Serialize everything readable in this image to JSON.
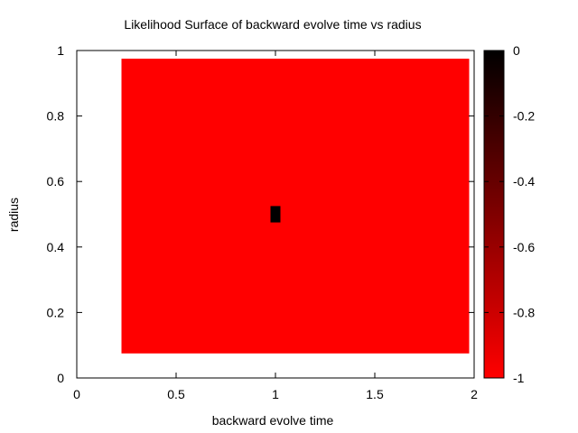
{
  "chart_data": {
    "type": "heatmap",
    "title": "Likelihood Surface of backward evolve time vs radius",
    "xlabel": "backward evolve time",
    "ylabel": "radius",
    "xlim": [
      0,
      2
    ],
    "ylim": [
      0,
      1
    ],
    "x_ticks": [
      {
        "value": 0,
        "label": "0"
      },
      {
        "value": 0.5,
        "label": "0.5"
      },
      {
        "value": 1,
        "label": "1"
      },
      {
        "value": 1.5,
        "label": "1.5"
      },
      {
        "value": 2,
        "label": "2"
      }
    ],
    "y_ticks": [
      {
        "value": 0,
        "label": "0"
      },
      {
        "value": 0.2,
        "label": "0.2"
      },
      {
        "value": 0.4,
        "label": "0.4"
      },
      {
        "value": 0.6,
        "label": "0.6"
      },
      {
        "value": 0.8,
        "label": "0.8"
      },
      {
        "value": 1,
        "label": "1"
      }
    ],
    "surface_extent": {
      "x": [
        0.225,
        1.975
      ],
      "y": [
        0.075,
        0.975
      ]
    },
    "background_value": -1,
    "cells": [
      {
        "x": [
          0.975,
          1.025
        ],
        "y": [
          0.475,
          0.525
        ],
        "value": 0
      }
    ],
    "colorbar": {
      "range": [
        -1,
        0
      ],
      "ticks": [
        {
          "value": 0,
          "label": "0"
        },
        {
          "value": -0.2,
          "label": "-0.2"
        },
        {
          "value": -0.4,
          "label": "-0.4"
        },
        {
          "value": -0.6,
          "label": "-0.6"
        },
        {
          "value": -0.8,
          "label": "-0.8"
        },
        {
          "value": -1,
          "label": "-1"
        }
      ],
      "color_low": "#ff0000",
      "color_high": "#000000"
    },
    "grid": false,
    "legend": "none"
  }
}
